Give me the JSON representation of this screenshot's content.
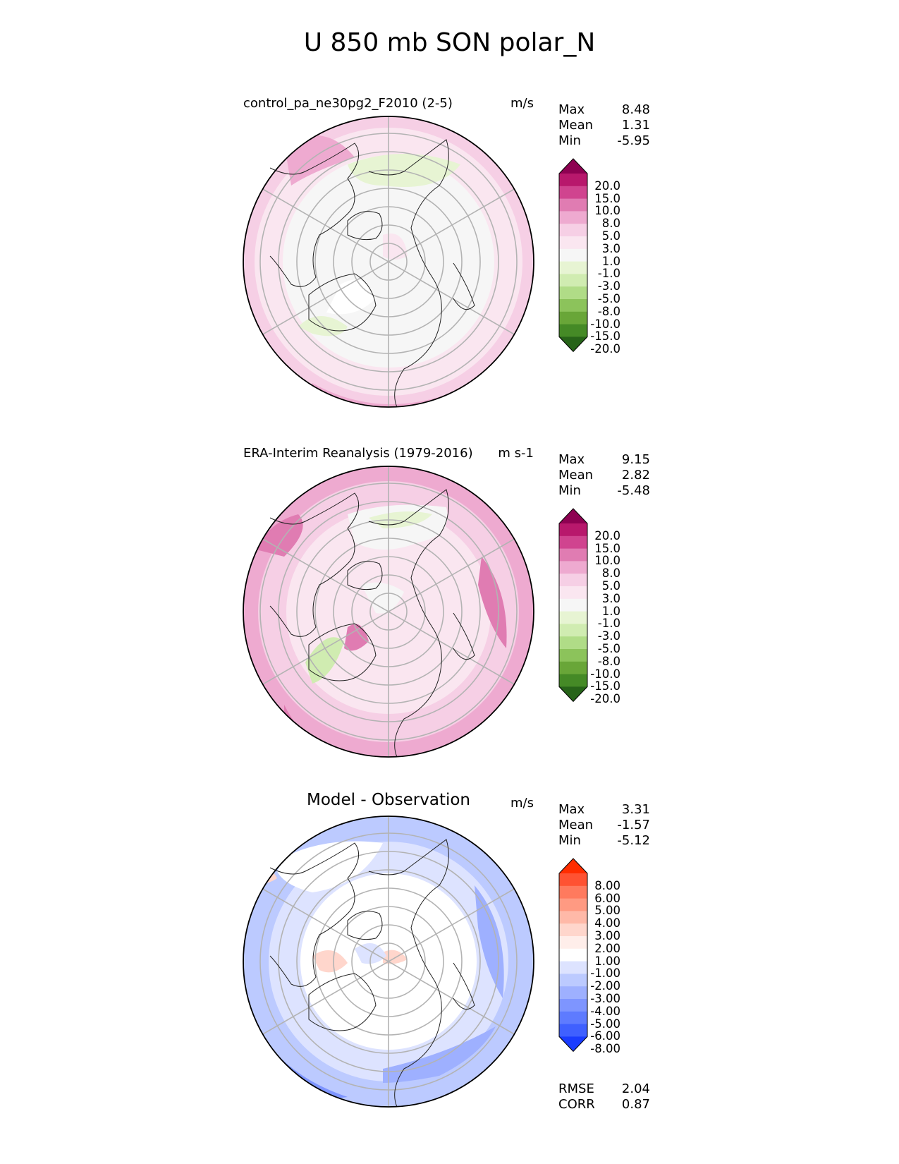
{
  "figure_title": "U 850 mb SON polar_N",
  "panels": [
    {
      "id": "test",
      "title": "control_pa_ne30pg2_F2010 (2-5)",
      "units": "m/s",
      "stats": {
        "max_label": "Max",
        "max": "8.48",
        "mean_label": "Mean",
        "mean": "1.31",
        "min_label": "Min",
        "min": "-5.95"
      },
      "colorbar": {
        "levels": [
          "20.0",
          "15.0",
          "10.0",
          "8.0",
          "5.0",
          "3.0",
          "1.0",
          "-1.0",
          "-3.0",
          "-5.0",
          "-8.0",
          "-10.0",
          "-15.0",
          "-20.0"
        ],
        "colors": [
          "#8e0152",
          "#b8186c",
          "#d0448f",
          "#e07cb2",
          "#eeaad0",
          "#f6cfe5",
          "#fae6f0",
          "#f6f6f6",
          "#e7f4d3",
          "#d0ecb1",
          "#b0dc87",
          "#8cc35b",
          "#69a638",
          "#458a26",
          "#276419"
        ]
      }
    },
    {
      "id": "ref",
      "title": "ERA-Interim Reanalysis (1979-2016)",
      "units": "m s-1",
      "stats": {
        "max_label": "Max",
        "max": "9.15",
        "mean_label": "Mean",
        "mean": "2.82",
        "min_label": "Min",
        "min": "-5.48"
      },
      "colorbar": {
        "levels": [
          "20.0",
          "15.0",
          "10.0",
          "8.0",
          "5.0",
          "3.0",
          "1.0",
          "-1.0",
          "-3.0",
          "-5.0",
          "-8.0",
          "-10.0",
          "-15.0",
          "-20.0"
        ],
        "colors": [
          "#8e0152",
          "#b8186c",
          "#d0448f",
          "#e07cb2",
          "#eeaad0",
          "#f6cfe5",
          "#fae6f0",
          "#f6f6f6",
          "#e7f4d3",
          "#d0ecb1",
          "#b0dc87",
          "#8cc35b",
          "#69a638",
          "#458a26",
          "#276419"
        ]
      }
    },
    {
      "id": "diff",
      "title": "Model - Observation",
      "units": "m/s",
      "stats": {
        "max_label": "Max",
        "max": "3.31",
        "mean_label": "Mean",
        "mean": "-1.57",
        "min_label": "Min",
        "min": "-5.12"
      },
      "colorbar": {
        "levels": [
          "8.00",
          "6.00",
          "5.00",
          "4.00",
          "3.00",
          "2.00",
          "1.00",
          "-1.00",
          "-2.00",
          "-3.00",
          "-4.00",
          "-5.00",
          "-6.00",
          "-8.00"
        ],
        "colors": [
          "#ff2d00",
          "#ff5232",
          "#ff7a5e",
          "#ff9a82",
          "#ffb9a8",
          "#ffd6cc",
          "#ffeeea",
          "#ffffff",
          "#dde3ff",
          "#bccaff",
          "#9eb0ff",
          "#7e95ff",
          "#5e7bff",
          "#3f60ff",
          "#1a3cff"
        ]
      },
      "metrics": {
        "rmse_label": "RMSE",
        "rmse": "2.04",
        "corr_label": "CORR",
        "corr": "0.87"
      }
    }
  ],
  "chart_data": [
    {
      "type": "heatmap",
      "title": "control_pa_ne30pg2_F2010 (2-5)",
      "projection": "polar_N",
      "units": "m/s",
      "max": 8.48,
      "mean": 1.31,
      "min": -5.95,
      "contour_levels": [
        -20,
        -15,
        -10,
        -8,
        -5,
        -3,
        -1,
        1,
        3,
        5,
        8,
        10,
        15,
        20
      ]
    },
    {
      "type": "heatmap",
      "title": "ERA-Interim Reanalysis (1979-2016)",
      "projection": "polar_N",
      "units": "m s-1",
      "max": 9.15,
      "mean": 2.82,
      "min": -5.48,
      "contour_levels": [
        -20,
        -15,
        -10,
        -8,
        -5,
        -3,
        -1,
        1,
        3,
        5,
        8,
        10,
        15,
        20
      ]
    },
    {
      "type": "heatmap",
      "title": "Model - Observation",
      "projection": "polar_N",
      "units": "m/s",
      "max": 3.31,
      "mean": -1.57,
      "min": -5.12,
      "rmse": 2.04,
      "corr": 0.87,
      "contour_levels": [
        -8,
        -6,
        -5,
        -4,
        -3,
        -2,
        -1,
        1,
        2,
        3,
        4,
        5,
        6,
        8
      ]
    }
  ]
}
